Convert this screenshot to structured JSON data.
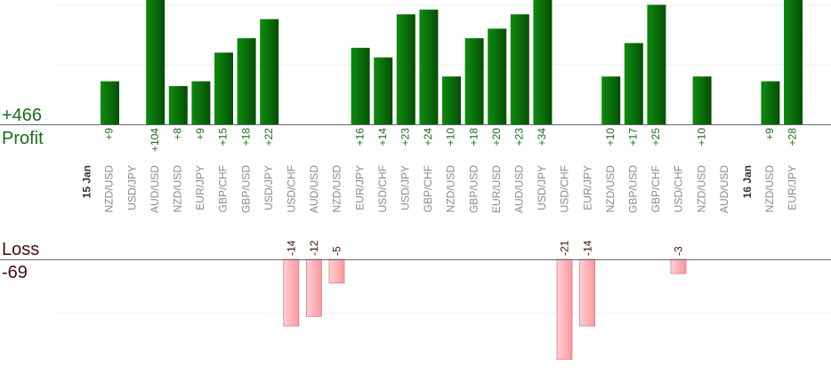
{
  "chart_data": {
    "type": "bar",
    "labels": {
      "profit_total": "+466",
      "profit_label": "Profit",
      "loss_label": "Loss",
      "loss_total": "-69"
    },
    "colors": {
      "profit_bar": "#0a6e0a",
      "profit_text": "#1a6e1a",
      "loss_bar": "#ffb3b8",
      "loss_text": "#4a0a0a",
      "axis": "#666666",
      "grid": "#eeeeee"
    },
    "series": [
      {
        "name": "Profit",
        "values": [
          9,
          null,
          104,
          8,
          9,
          15,
          18,
          22,
          null,
          null,
          null,
          16,
          14,
          23,
          24,
          10,
          18,
          20,
          23,
          34,
          null,
          null,
          10,
          17,
          25,
          null,
          10,
          null,
          null,
          9,
          28
        ]
      },
      {
        "name": "Loss",
        "values": [
          null,
          null,
          null,
          null,
          null,
          null,
          null,
          null,
          -14,
          -12,
          -5,
          null,
          null,
          null,
          null,
          null,
          null,
          null,
          null,
          null,
          -21,
          -14,
          null,
          null,
          null,
          -3,
          null,
          null,
          null,
          null,
          null
        ]
      }
    ],
    "data_labels": {
      "profit": [
        "+9",
        "",
        "+104",
        "+8",
        "+9",
        "+15",
        "+18",
        "+22",
        "",
        "",
        "",
        "+16",
        "+14",
        "+23",
        "+24",
        "+10",
        "+18",
        "+20",
        "+23",
        "+34",
        "",
        "",
        "+10",
        "+17",
        "+25",
        "",
        "+10",
        "",
        "",
        "+9",
        "+28"
      ],
      "loss": [
        "",
        "",
        "",
        "",
        "",
        "",
        "",
        "",
        "-14",
        "-12",
        "-5",
        "",
        "",
        "",
        "",
        "",
        "",
        "",
        "",
        "",
        "-21",
        "-14",
        "",
        "",
        "",
        "-3",
        "",
        "",
        "",
        "",
        ""
      ]
    },
    "categories": [
      "NZD/USD",
      "USD/JPY",
      "AUD/USD",
      "NZD/USD",
      "EUR/JPY",
      "GBP/CHF",
      "GBP/USD",
      "USD/JPY",
      "USD/CHF",
      "AUD/USD",
      "NZD/USD",
      "EUR/JPY",
      "USD/CHF",
      "USD/JPY",
      "GBP/CHF",
      "NZD/USD",
      "GBP/USD",
      "EUR/USD",
      "AUD/USD",
      "USD/JPY",
      "USD/CHF",
      "EUR/JPY",
      "NZD/USD",
      "GBP/USD",
      "GBP/CHF",
      "USD/CHF",
      "NZD/USD",
      "AUD/USD",
      "",
      "NZD/USD",
      "EUR/JPY"
    ],
    "date_markers": [
      {
        "index": 0,
        "label": "15 Jan"
      },
      {
        "index": 29,
        "label": "16 Jan"
      }
    ],
    "profit_axis_max": 26,
    "loss_axis_min": -22
  }
}
